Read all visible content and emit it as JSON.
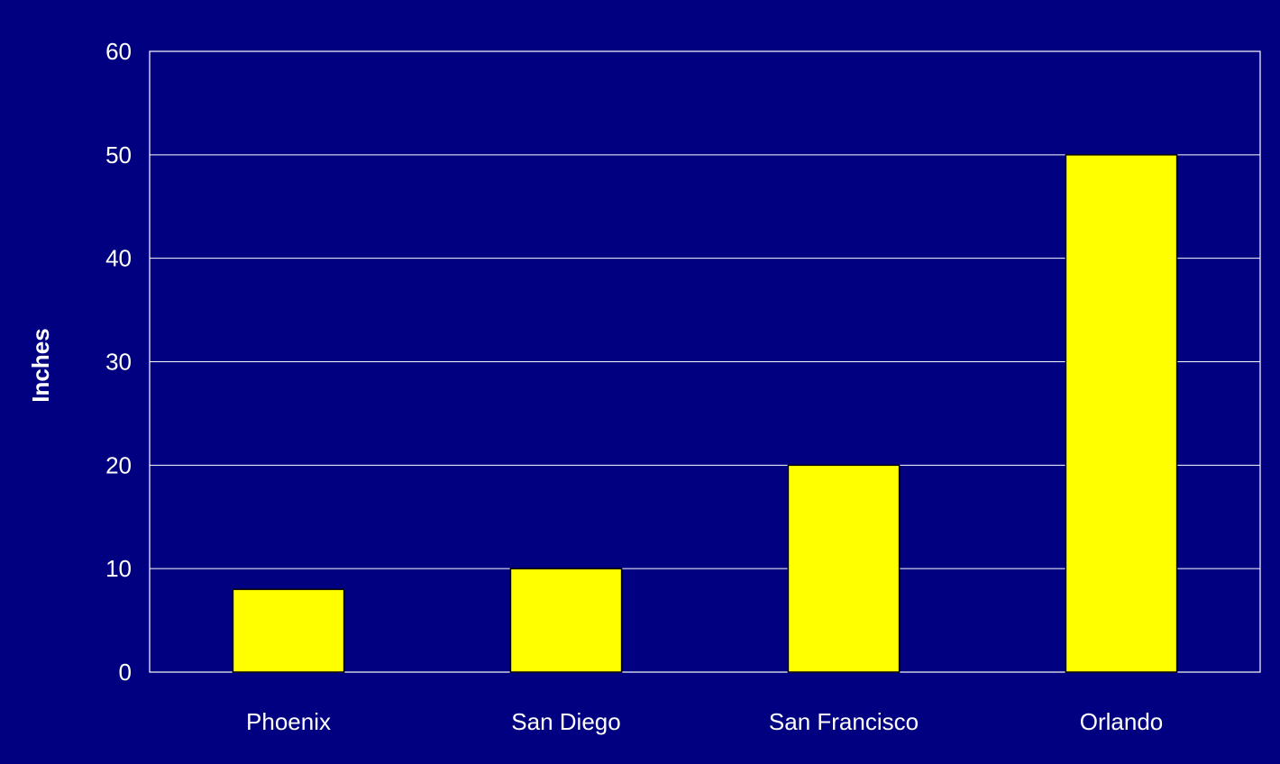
{
  "chart_data": {
    "type": "bar",
    "title": "",
    "xlabel": "",
    "ylabel": "Inches",
    "categories": [
      "Phoenix",
      "San Diego",
      "San Francisco",
      "Orlando"
    ],
    "values": [
      8,
      10,
      20,
      50
    ],
    "ylim": [
      0,
      60
    ],
    "yticks": [
      0,
      10,
      20,
      30,
      40,
      50,
      60
    ],
    "grid": true,
    "legend": "none",
    "colors": {
      "background": "#000080",
      "bar_fill": "#FFFF00",
      "bar_stroke": "#000000",
      "text": "#FFFFFF",
      "grid": "#FFFFFF",
      "axis": "#FFFFFF",
      "frame": "#FFFFFF"
    }
  }
}
